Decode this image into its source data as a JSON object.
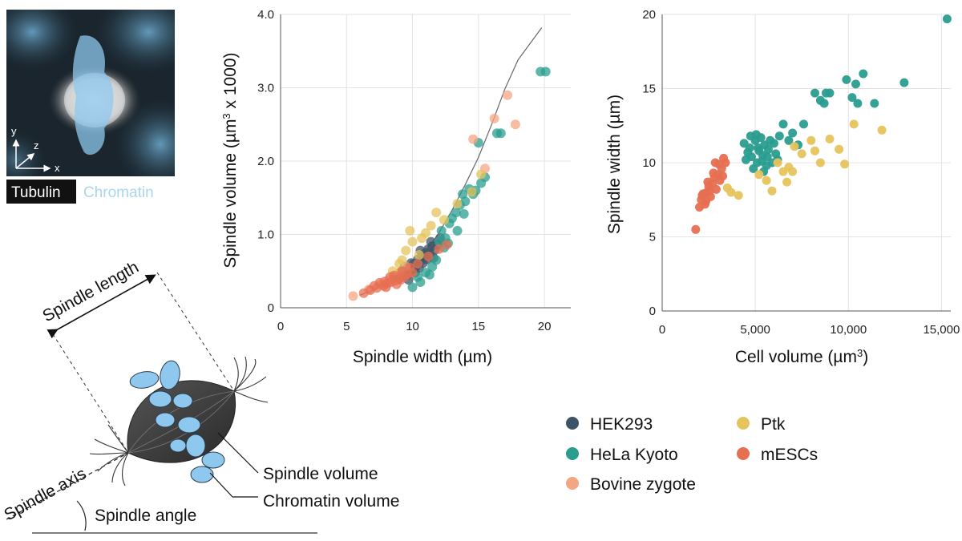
{
  "colors": {
    "HEK293": "#3d5468",
    "HeLa Kyoto": "#2a9d8f",
    "Bovine zygote": "#f4a582",
    "Ptk": "#e6c35c",
    "mESCs": "#e76f51",
    "tubulin": "#ffffff",
    "chromatin": "#a9d6ef",
    "diagram_spindle": "#3a3a3a",
    "diagram_chromatin": "#8ec8ef"
  },
  "micrograph": {
    "axes": {
      "y": "y",
      "z": "z",
      "x": "x"
    },
    "labels": {
      "tubulin": "Tubulin",
      "chromatin": "Chromatin"
    }
  },
  "diagram": {
    "spindle_length": "Spindle length",
    "spindle_axis": "Spindle axis",
    "spindle_volume": "Spindle volume",
    "chromatin_volume": "Chromatin volume",
    "spindle_angle": "Spindle angle"
  },
  "legend": {
    "items": [
      "HEK293",
      "HeLa Kyoto",
      "Bovine zygote",
      "Ptk",
      "mESCs"
    ]
  },
  "chart_data": [
    {
      "type": "scatter",
      "xlabel": "Spindle width (µm)",
      "ylabel_main": "Spindle volume (µm",
      "ylabel_sup": "3",
      "ylabel_tail": " x 1000)",
      "xlim": [
        0,
        22
      ],
      "ylim": [
        0,
        4
      ],
      "xticks": [
        0,
        5,
        10,
        15,
        20
      ],
      "xtick_labels": [
        "0",
        "5",
        "10",
        "15",
        "20"
      ],
      "yticks": [
        0,
        1,
        2,
        3,
        4
      ],
      "ytick_labels": [
        "0",
        "1.0",
        "2.0",
        "3.0",
        "4.0"
      ],
      "grid": true,
      "fit_line": [
        [
          6.0,
          0.17
        ],
        [
          7.0,
          0.24
        ],
        [
          8.0,
          0.32
        ],
        [
          9.0,
          0.43
        ],
        [
          10.0,
          0.57
        ],
        [
          11.0,
          0.77
        ],
        [
          12.0,
          1.02
        ],
        [
          13.0,
          1.33
        ],
        [
          14.0,
          1.68
        ],
        [
          15.0,
          2.05
        ],
        [
          16.0,
          2.5
        ],
        [
          17.0,
          2.98
        ],
        [
          18.0,
          3.38
        ],
        [
          19.8,
          3.82
        ]
      ],
      "series": [
        {
          "name": "HEK293",
          "points": [
            [
              8.6,
              0.42
            ],
            [
              9.0,
              0.4
            ],
            [
              9.3,
              0.46
            ],
            [
              9.6,
              0.44
            ],
            [
              9.8,
              0.5
            ],
            [
              10.0,
              0.52
            ],
            [
              10.1,
              0.6
            ],
            [
              10.3,
              0.57
            ],
            [
              10.4,
              0.66
            ],
            [
              10.6,
              0.63
            ],
            [
              10.7,
              0.7
            ],
            [
              10.9,
              0.69
            ],
            [
              11.0,
              0.75
            ],
            [
              11.2,
              0.8
            ],
            [
              11.3,
              0.73
            ],
            [
              11.5,
              0.84
            ],
            [
              11.7,
              0.79
            ],
            [
              11.9,
              0.86
            ],
            [
              9.4,
              0.56
            ],
            [
              10.2,
              0.48
            ],
            [
              10.5,
              0.54
            ],
            [
              10.8,
              0.61
            ],
            [
              11.1,
              0.66
            ],
            [
              9.9,
              0.61
            ],
            [
              11.4,
              0.9
            ],
            [
              12.1,
              0.95
            ],
            [
              9.2,
              0.5
            ],
            [
              10.6,
              0.78
            ],
            [
              11.6,
              0.68
            ],
            [
              9.7,
              0.38
            ]
          ]
        },
        {
          "name": "HeLa Kyoto",
          "points": [
            [
              12.2,
              1.05
            ],
            [
              12.5,
              0.95
            ],
            [
              12.8,
              1.15
            ],
            [
              13.0,
              1.22
            ],
            [
              13.3,
              1.3
            ],
            [
              13.6,
              1.4
            ],
            [
              13.8,
              1.55
            ],
            [
              14.0,
              1.45
            ],
            [
              14.3,
              1.62
            ],
            [
              14.6,
              1.55
            ],
            [
              14.8,
              1.6
            ],
            [
              15.2,
              1.7
            ],
            [
              15.5,
              1.78
            ],
            [
              15.0,
              2.25
            ],
            [
              16.4,
              2.38
            ],
            [
              16.7,
              2.38
            ],
            [
              19.7,
              3.22
            ],
            [
              20.1,
              3.22
            ],
            [
              11.0,
              0.48
            ],
            [
              11.5,
              0.56
            ],
            [
              11.8,
              0.65
            ],
            [
              12.0,
              0.9
            ],
            [
              12.4,
              0.82
            ],
            [
              10.0,
              0.28
            ],
            [
              10.6,
              0.35
            ],
            [
              11.3,
              0.45
            ],
            [
              12.7,
              0.88
            ],
            [
              13.4,
              1.05
            ],
            [
              13.9,
              1.28
            ],
            [
              10.4,
              0.42
            ]
          ]
        },
        {
          "name": "Bovine zygote",
          "points": [
            [
              5.5,
              0.16
            ],
            [
              6.7,
              0.25
            ],
            [
              7.6,
              0.32
            ],
            [
              8.2,
              0.38
            ],
            [
              14.6,
              2.3
            ],
            [
              15.5,
              1.9
            ],
            [
              16.2,
              2.58
            ],
            [
              17.2,
              2.9
            ],
            [
              17.8,
              2.5
            ],
            [
              9.0,
              0.48
            ],
            [
              9.5,
              0.56
            ]
          ]
        },
        {
          "name": "Ptk",
          "points": [
            [
              8.5,
              0.5
            ],
            [
              9.0,
              0.6
            ],
            [
              9.5,
              0.78
            ],
            [
              10.0,
              0.9
            ],
            [
              10.5,
              0.72
            ],
            [
              11.0,
              1.02
            ],
            [
              11.4,
              1.12
            ],
            [
              11.8,
              1.3
            ],
            [
              12.4,
              1.2
            ],
            [
              13.4,
              1.42
            ],
            [
              14.5,
              1.58
            ],
            [
              15.2,
              1.82
            ],
            [
              9.8,
              1.05
            ],
            [
              9.2,
              0.65
            ],
            [
              10.7,
              0.95
            ]
          ]
        },
        {
          "name": "mESCs",
          "points": [
            [
              6.3,
              0.2
            ],
            [
              6.8,
              0.24
            ],
            [
              7.3,
              0.27
            ],
            [
              7.8,
              0.3
            ],
            [
              8.1,
              0.33
            ],
            [
              8.4,
              0.35
            ],
            [
              8.7,
              0.37
            ],
            [
              8.9,
              0.4
            ],
            [
              9.1,
              0.38
            ],
            [
              9.4,
              0.42
            ],
            [
              7.5,
              0.34
            ],
            [
              8.0,
              0.28
            ],
            [
              8.6,
              0.44
            ],
            [
              9.6,
              0.45
            ],
            [
              10.0,
              0.48
            ],
            [
              9.2,
              0.5
            ],
            [
              7.1,
              0.3
            ],
            [
              8.3,
              0.42
            ],
            [
              9.8,
              0.55
            ],
            [
              10.4,
              0.6
            ],
            [
              11.2,
              0.7
            ],
            [
              12.0,
              0.8
            ],
            [
              12.6,
              0.86
            ],
            [
              8.8,
              0.32
            ],
            [
              7.9,
              0.36
            ]
          ]
        }
      ]
    },
    {
      "type": "scatter",
      "xlabel_main": "Cell volume (µm",
      "xlabel_sup": "3",
      "xlabel_tail": ")",
      "ylabel": "Spindle width (µm)",
      "xlim": [
        0,
        15500
      ],
      "ylim": [
        0,
        20
      ],
      "xticks": [
        0,
        5000,
        10000,
        15000
      ],
      "xtick_labels": [
        "0",
        "5,000",
        "10,000",
        "15,000"
      ],
      "yticks": [
        0,
        5,
        10,
        15,
        20
      ],
      "ytick_labels": [
        "0",
        "5",
        "10",
        "15",
        "20"
      ],
      "grid": true,
      "series": [
        {
          "name": "HeLa Kyoto",
          "points": [
            [
              4500,
              10.2
            ],
            [
              4700,
              11.0
            ],
            [
              4800,
              10.4
            ],
            [
              5000,
              11.5
            ],
            [
              5100,
              10.0
            ],
            [
              5200,
              10.8
            ],
            [
              5300,
              11.7
            ],
            [
              5400,
              10.5
            ],
            [
              5500,
              11.2
            ],
            [
              5600,
              9.8
            ],
            [
              5700,
              10.9
            ],
            [
              5800,
              11.5
            ],
            [
              4600,
              10.7
            ],
            [
              4900,
              9.6
            ],
            [
              5050,
              11.9
            ],
            [
              5350,
              10.1
            ],
            [
              5650,
              10.4
            ],
            [
              6000,
              11.3
            ],
            [
              6300,
              11.8
            ],
            [
              6500,
              12.6
            ],
            [
              7000,
              12.0
            ],
            [
              7300,
              11.2
            ],
            [
              7600,
              12.6
            ],
            [
              8200,
              14.7
            ],
            [
              8500,
              14.2
            ],
            [
              8700,
              14.0
            ],
            [
              8800,
              14.7
            ],
            [
              9000,
              14.7
            ],
            [
              9900,
              15.6
            ],
            [
              10200,
              14.4
            ],
            [
              10400,
              15.3
            ],
            [
              10500,
              14.0
            ],
            [
              10800,
              16.0
            ],
            [
              11400,
              14.0
            ],
            [
              13000,
              15.4
            ],
            [
              15300,
              19.7
            ],
            [
              6200,
              10.2
            ],
            [
              6800,
              11.5
            ],
            [
              4400,
              11.3
            ],
            [
              5900,
              10.0
            ],
            [
              5150,
              11.0
            ],
            [
              4750,
              11.8
            ],
            [
              5450,
              9.4
            ],
            [
              6100,
              10.6
            ]
          ]
        },
        {
          "name": "Ptk",
          "points": [
            [
              3500,
              8.3
            ],
            [
              3700,
              8.0
            ],
            [
              4100,
              7.8
            ],
            [
              5200,
              9.2
            ],
            [
              5600,
              8.8
            ],
            [
              5900,
              8.1
            ],
            [
              6200,
              10.0
            ],
            [
              6500,
              9.4
            ],
            [
              6800,
              9.7
            ],
            [
              7000,
              9.4
            ],
            [
              7500,
              10.6
            ],
            [
              8000,
              11.5
            ],
            [
              8200,
              10.8
            ],
            [
              8500,
              10.0
            ],
            [
              9000,
              11.6
            ],
            [
              9500,
              10.9
            ],
            [
              9800,
              9.9
            ],
            [
              10300,
              12.6
            ],
            [
              11800,
              12.2
            ],
            [
              6700,
              8.7
            ],
            [
              7100,
              11.1
            ]
          ]
        },
        {
          "name": "mESCs",
          "points": [
            [
              1800,
              5.5
            ],
            [
              2000,
              7.0
            ],
            [
              2100,
              7.5
            ],
            [
              2200,
              7.9
            ],
            [
              2300,
              7.2
            ],
            [
              2400,
              8.0
            ],
            [
              2500,
              8.4
            ],
            [
              2600,
              7.7
            ],
            [
              2700,
              8.6
            ],
            [
              2800,
              9.0
            ],
            [
              2900,
              8.2
            ],
            [
              3000,
              9.2
            ],
            [
              3100,
              8.8
            ],
            [
              3200,
              9.6
            ],
            [
              3300,
              10.3
            ],
            [
              3400,
              10.0
            ],
            [
              2150,
              7.8
            ],
            [
              2450,
              8.7
            ],
            [
              2750,
              9.3
            ],
            [
              3050,
              9.9
            ],
            [
              2550,
              8.1
            ],
            [
              2850,
              10.0
            ],
            [
              3250,
              9.1
            ],
            [
              2350,
              7.4
            ]
          ]
        }
      ]
    }
  ]
}
